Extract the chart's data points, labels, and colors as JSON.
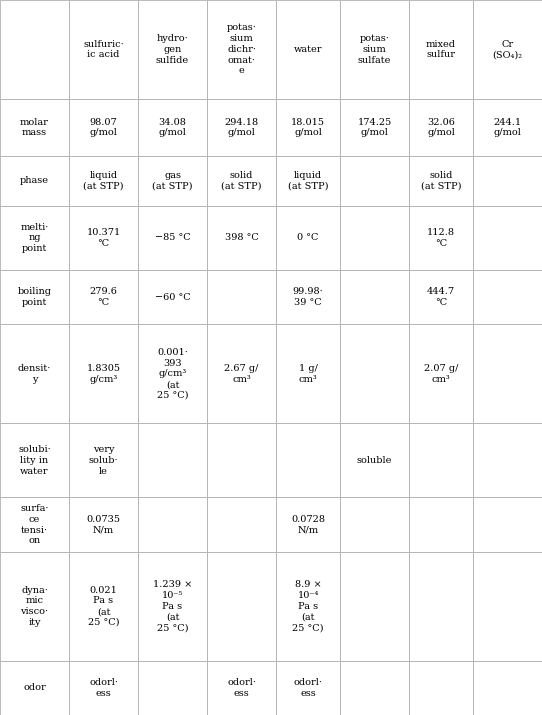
{
  "columns": [
    "",
    "sulfuric·\nic acid",
    "hydro·\ngen\nsulfide",
    "potas·\nsium\ndichr·\nomat·\ne",
    "water",
    "potas·\nsium\nsulfate",
    "mixed\nsulfur",
    "Cr\n(SO₄)₂"
  ],
  "rows": [
    {
      "label": "molar\nmass",
      "values": [
        "98.07\ng/mol",
        "34.08\ng/mol",
        "294.18\ng/mol",
        "18.015\ng/mol",
        "174.25\ng/mol",
        "32.06\ng/mol",
        "244.1\ng/mol"
      ]
    },
    {
      "label": "phase",
      "values": [
        "liquid\n(at STP)",
        "gas\n(at STP)",
        "solid\n(at STP)",
        "liquid\n(at STP)",
        "",
        "solid\n(at STP)",
        ""
      ]
    },
    {
      "label": "melti·\nng\npoint",
      "values": [
        "10.371\n°C",
        "−85 °C",
        "398 °C",
        "0 °C",
        "",
        "112.8\n°C",
        ""
      ]
    },
    {
      "label": "boiling\npoint",
      "values": [
        "279.6\n°C",
        "−60 °C",
        "",
        "99.98·\n39 °C",
        "",
        "444.7\n°C",
        ""
      ]
    },
    {
      "label": "densit·\ny",
      "values": [
        "1.8305\ng/cm³",
        "0.001·\n393\ng/cm³\n(at\n25 °C)",
        "2.67 g/\ncm³",
        "1 g/\ncm³",
        "",
        "2.07 g/\ncm³",
        ""
      ]
    },
    {
      "label": "solubi·\nlity in\nwater",
      "values": [
        "very\nsolub·\nle",
        "",
        "",
        "",
        "soluble",
        "",
        ""
      ]
    },
    {
      "label": "surfa·\nce\ntensi·\non",
      "values": [
        "0.0735\nN/m",
        "",
        "",
        "0.0728\nN/m",
        "",
        "",
        ""
      ]
    },
    {
      "label": "dyna·\nmic\nvisco·\nity",
      "values": [
        "0.021\nPa s\n(at\n25 °C)",
        "1.239 ×\n10⁻⁵\nPa s\n(at\n25 °C)",
        "",
        "8.9 ×\n10⁻⁴\nPa s\n(at\n25 °C)",
        "",
        "",
        ""
      ]
    },
    {
      "label": "odor",
      "values": [
        "odorl·\ness",
        "",
        "odorl·\ness",
        "odorl·\ness",
        "",
        "",
        ""
      ]
    }
  ],
  "font_size": 7.0,
  "bg_color": "#ffffff",
  "grid_color": "#b0b0b0",
  "text_color": "#000000"
}
